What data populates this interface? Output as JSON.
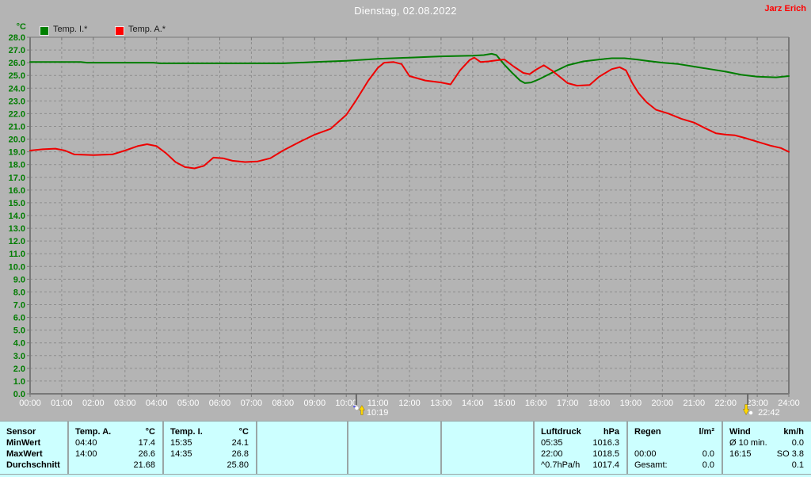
{
  "header": {
    "title": "Dienstag, 02.08.2022",
    "author": "Jarz Erich"
  },
  "legend": {
    "unit": "°C",
    "items": [
      {
        "label": "Temp. I.*",
        "color": "#008000"
      },
      {
        "label": "Temp. A.*",
        "color": "#ff0000"
      }
    ]
  },
  "colors": {
    "background": "#b4b4b4",
    "table_background": "#ccffff",
    "grid": "#8d8d8d",
    "axis": "#787878",
    "y_tick_text": "#007c00",
    "x_tick_text": "#ffffff",
    "title_text": "#ffffff",
    "author_text": "#ff0000",
    "marker_tick": "#686868",
    "marker_text": "#ffffff",
    "marker_arrow": "#ffd800"
  },
  "chart_data": {
    "type": "line",
    "title": "Dienstag, 02.08.2022",
    "ylabel": "°C",
    "xlim": [
      0,
      24
    ],
    "ylim": [
      0,
      28
    ],
    "grid": true,
    "legend_position": "top-left",
    "x_tick_labels": [
      "00:00",
      "01:00",
      "02:00",
      "03:00",
      "04:00",
      "05:00",
      "06:00",
      "07:00",
      "08:00",
      "09:00",
      "10:00",
      "11:00",
      "12:00",
      "13:00",
      "14:00",
      "15:00",
      "16:00",
      "17:00",
      "18:00",
      "19:00",
      "20:00",
      "21:00",
      "22:00",
      "23:00",
      "24:00"
    ],
    "y_tick_labels": [
      "0.0",
      "1.0",
      "2.0",
      "3.0",
      "4.0",
      "5.0",
      "6.0",
      "7.0",
      "8.0",
      "9.0",
      "10.0",
      "11.0",
      "12.0",
      "13.0",
      "14.0",
      "15.0",
      "16.0",
      "17.0",
      "18.0",
      "19.0",
      "20.0",
      "21.0",
      "22.0",
      "23.0",
      "24.0",
      "25.0",
      "26.0",
      "27.0",
      "28.0"
    ],
    "series": [
      {
        "name": "Temp. I.*",
        "unit": "°C",
        "color": "#007d00",
        "points": [
          [
            0,
            26.05
          ],
          [
            1.6,
            26.05
          ],
          [
            1.8,
            26.0
          ],
          [
            3.9,
            26.0
          ],
          [
            4.1,
            25.95
          ],
          [
            8,
            25.95
          ],
          [
            9,
            26.05
          ],
          [
            10,
            26.15
          ],
          [
            11,
            26.3
          ],
          [
            12,
            26.4
          ],
          [
            13,
            26.5
          ],
          [
            14,
            26.55
          ],
          [
            14.35,
            26.6
          ],
          [
            14.6,
            26.7
          ],
          [
            14.75,
            26.6
          ],
          [
            15,
            25.85
          ],
          [
            15.25,
            25.2
          ],
          [
            15.5,
            24.6
          ],
          [
            15.65,
            24.4
          ],
          [
            15.85,
            24.45
          ],
          [
            16.1,
            24.7
          ],
          [
            16.5,
            25.2
          ],
          [
            17,
            25.8
          ],
          [
            17.5,
            26.1
          ],
          [
            18,
            26.25
          ],
          [
            18.4,
            26.35
          ],
          [
            18.8,
            26.35
          ],
          [
            19.2,
            26.25
          ],
          [
            19.5,
            26.15
          ],
          [
            20,
            26.0
          ],
          [
            20.5,
            25.9
          ],
          [
            21,
            25.7
          ],
          [
            21.5,
            25.5
          ],
          [
            22,
            25.3
          ],
          [
            22.5,
            25.05
          ],
          [
            23,
            24.9
          ],
          [
            23.6,
            24.85
          ],
          [
            24,
            24.95
          ]
        ]
      },
      {
        "name": "Temp. A.*",
        "unit": "°C",
        "color": "#ee0000",
        "points": [
          [
            0,
            19.1
          ],
          [
            0.4,
            19.2
          ],
          [
            0.8,
            19.25
          ],
          [
            1.1,
            19.1
          ],
          [
            1.4,
            18.8
          ],
          [
            2.0,
            18.75
          ],
          [
            2.6,
            18.8
          ],
          [
            3.0,
            19.1
          ],
          [
            3.4,
            19.45
          ],
          [
            3.7,
            19.6
          ],
          [
            4.0,
            19.45
          ],
          [
            4.3,
            18.9
          ],
          [
            4.6,
            18.2
          ],
          [
            4.9,
            17.8
          ],
          [
            5.2,
            17.7
          ],
          [
            5.5,
            17.9
          ],
          [
            5.8,
            18.55
          ],
          [
            6.1,
            18.5
          ],
          [
            6.4,
            18.3
          ],
          [
            6.8,
            18.2
          ],
          [
            7.2,
            18.25
          ],
          [
            7.6,
            18.5
          ],
          [
            8.0,
            19.1
          ],
          [
            8.5,
            19.75
          ],
          [
            9.0,
            20.35
          ],
          [
            9.5,
            20.8
          ],
          [
            10.0,
            21.9
          ],
          [
            10.3,
            23.0
          ],
          [
            10.7,
            24.6
          ],
          [
            11.0,
            25.6
          ],
          [
            11.2,
            26.0
          ],
          [
            11.5,
            26.05
          ],
          [
            11.75,
            25.9
          ],
          [
            12.0,
            24.95
          ],
          [
            12.5,
            24.6
          ],
          [
            13.0,
            24.45
          ],
          [
            13.3,
            24.3
          ],
          [
            13.6,
            25.4
          ],
          [
            13.9,
            26.2
          ],
          [
            14.05,
            26.4
          ],
          [
            14.25,
            26.05
          ],
          [
            14.5,
            26.1
          ],
          [
            14.8,
            26.2
          ],
          [
            15.0,
            26.25
          ],
          [
            15.3,
            25.7
          ],
          [
            15.6,
            25.2
          ],
          [
            15.8,
            25.1
          ],
          [
            16.0,
            25.45
          ],
          [
            16.25,
            25.8
          ],
          [
            16.5,
            25.4
          ],
          [
            16.8,
            24.8
          ],
          [
            17.0,
            24.4
          ],
          [
            17.3,
            24.2
          ],
          [
            17.7,
            24.25
          ],
          [
            18.0,
            24.9
          ],
          [
            18.4,
            25.5
          ],
          [
            18.65,
            25.65
          ],
          [
            18.85,
            25.4
          ],
          [
            19.05,
            24.4
          ],
          [
            19.25,
            23.6
          ],
          [
            19.5,
            22.9
          ],
          [
            19.8,
            22.3
          ],
          [
            20.2,
            22.0
          ],
          [
            20.6,
            21.6
          ],
          [
            21.0,
            21.3
          ],
          [
            21.4,
            20.8
          ],
          [
            21.7,
            20.45
          ],
          [
            22.0,
            20.35
          ],
          [
            22.3,
            20.3
          ],
          [
            22.6,
            20.1
          ],
          [
            23.0,
            19.8
          ],
          [
            23.4,
            19.5
          ],
          [
            23.75,
            19.3
          ],
          [
            24.0,
            19.0
          ]
        ]
      }
    ],
    "markers": [
      {
        "label": "10:19",
        "hours": 10.32,
        "icon": "flash-up"
      },
      {
        "label": "22:42",
        "hours": 22.7,
        "icon": "flash-down"
      }
    ]
  },
  "table": {
    "row_labels": [
      "Sensor",
      "MinWert",
      "MaxWert",
      "Durchschnitt"
    ],
    "columns": [
      {
        "name": "Temp. A.",
        "unit": "°C",
        "rows": [
          [
            "04:40",
            "17.4"
          ],
          [
            "14:00",
            "26.6"
          ],
          [
            "",
            "21.68"
          ]
        ]
      },
      {
        "name": "Temp. I.",
        "unit": "°C",
        "rows": [
          [
            "15:35",
            "24.1"
          ],
          [
            "14:35",
            "26.8"
          ],
          [
            "",
            "25.80"
          ]
        ]
      },
      {
        "name": "",
        "unit": "",
        "rows": [
          [
            "",
            ""
          ],
          [
            "",
            ""
          ],
          [
            "",
            ""
          ]
        ]
      },
      {
        "name": "",
        "unit": "",
        "rows": [
          [
            "",
            ""
          ],
          [
            "",
            ""
          ],
          [
            "",
            ""
          ]
        ]
      },
      {
        "name": "",
        "unit": "",
        "rows": [
          [
            "",
            ""
          ],
          [
            "",
            ""
          ],
          [
            "",
            ""
          ]
        ]
      },
      {
        "name": "Luftdruck",
        "unit": "hPa",
        "rows": [
          [
            "05:35",
            "1016.3"
          ],
          [
            "22:00",
            "1018.5"
          ],
          [
            "^0.7hPa/h",
            "1017.4"
          ]
        ]
      },
      {
        "name": "Regen",
        "unit": "l/m²",
        "rows": [
          [
            "",
            ""
          ],
          [
            "00:00",
            "0.0"
          ],
          [
            "Gesamt:",
            "0.0"
          ]
        ]
      },
      {
        "name": "Wind",
        "unit": "km/h",
        "rows": [
          [
            "Ø 10 min.",
            "0.0"
          ],
          [
            "16:15",
            "SO 3.8"
          ],
          [
            "",
            "0.1"
          ]
        ]
      }
    ]
  }
}
